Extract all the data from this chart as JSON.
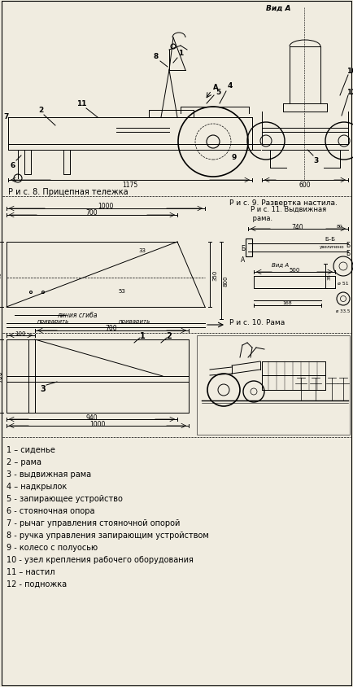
{
  "bg_color": "#f0ece0",
  "line_color": "#1a1a1a",
  "fig8_caption": "Р и с. 8. Прицепная тележка",
  "fig9_caption": "Р и с. 9. Развертка настила.",
  "fig10_caption": "Р и с. 10. Рама",
  "fig11_caption": "Р и с. 11. Выдвижная\n рама.",
  "vid_a_label": "Вид А",
  "legend": [
    "1 – сиденье",
    "2 – рама",
    "3 - выдвижная рама",
    "4 – надкрылок",
    "5 - запирающее устройство",
    "6 - стояночная опора",
    "7 - рычаг управления стояночной опорой",
    "8 - ручка управления запирающим устройством",
    "9 - колесо с полуосью",
    "10 - узел крепления рабочего оборудования",
    "11 – настил",
    "12 - подножка"
  ],
  "lc": "#000000"
}
